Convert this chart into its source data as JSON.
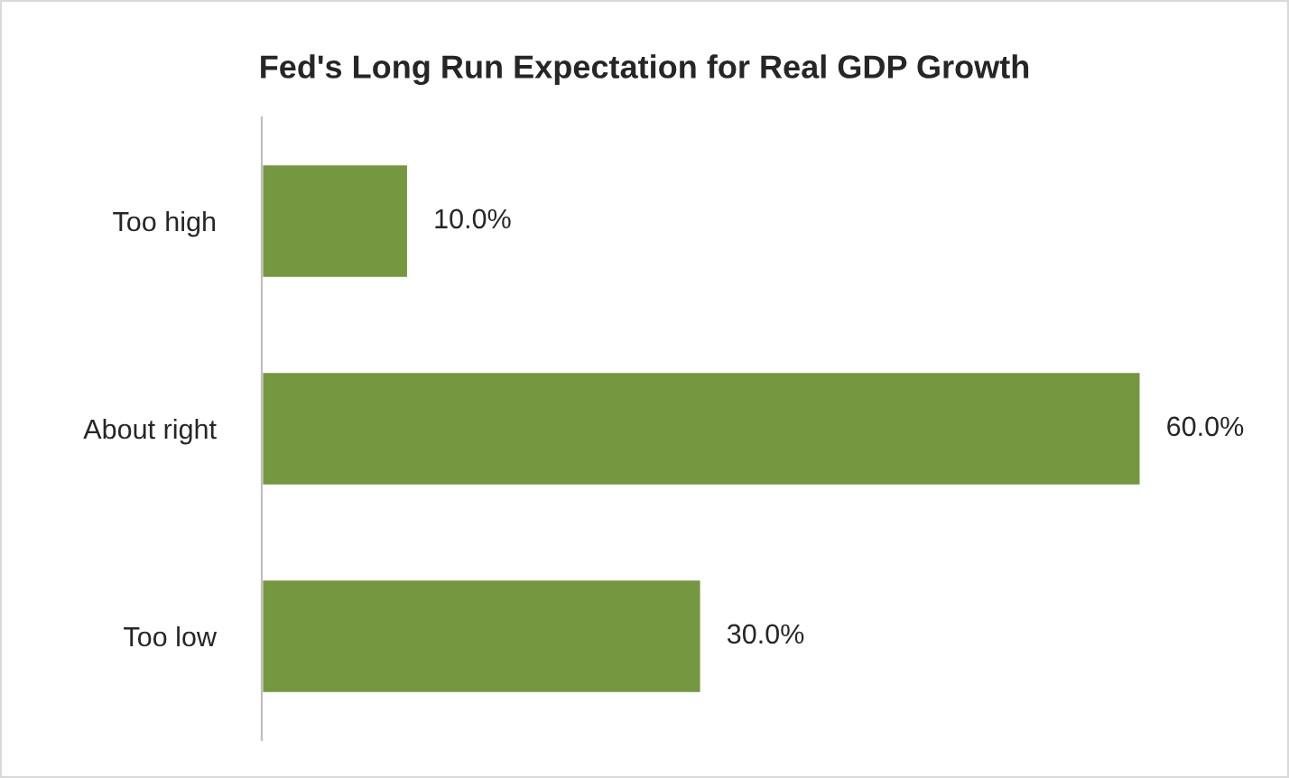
{
  "chart_data": {
    "type": "bar",
    "orientation": "horizontal",
    "title": "Fed's Long Run Expectation for Real GDP Growth",
    "categories": [
      "Too high",
      "About right",
      "Too low"
    ],
    "values": [
      10.0,
      60.0,
      30.0
    ],
    "value_labels": [
      "10.0%",
      "60.0%",
      "30.0%"
    ],
    "color": "#74973f",
    "grid": false,
    "legend": false
  }
}
